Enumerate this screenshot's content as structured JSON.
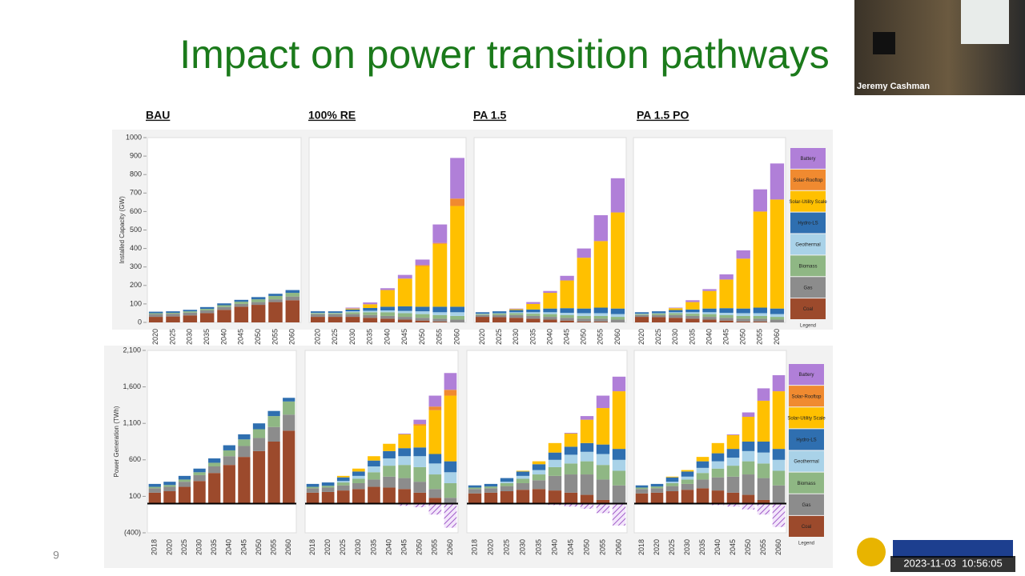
{
  "slide": {
    "title": "Impact on power transition pathways",
    "page_number": "9"
  },
  "video": {
    "speaker": "Jeremy Cashman",
    "timestamp": "2023-11-03  10:56:05"
  },
  "chart_data": [
    {
      "type": "bar",
      "stacked": true,
      "y_label": "Installed Capacity (GW)",
      "ylim": [
        0,
        1000
      ],
      "yticks": [
        0,
        100,
        200,
        300,
        400,
        500,
        600,
        700,
        800,
        900,
        1000
      ],
      "legend_title": "Legend",
      "series": [
        {
          "name": "Coal",
          "color": "#9c4a2c"
        },
        {
          "name": "Gas",
          "color": "#8c8c8c"
        },
        {
          "name": "Biomass",
          "color": "#8fb784"
        },
        {
          "name": "Geothermal",
          "color": "#a9d2e8"
        },
        {
          "name": "Hydro-LS",
          "color": "#2f6fb0"
        },
        {
          "name": "Solar-Utility Scale",
          "color": "#ffc000"
        },
        {
          "name": "Solar-Rooftop",
          "color": "#f08a30"
        },
        {
          "name": "Battery",
          "color": "#b07fd8"
        }
      ],
      "panels": [
        {
          "title": "BAU",
          "categories": [
            "2020",
            "2025",
            "2030",
            "2035",
            "2040",
            "2045",
            "2050",
            "2055",
            "2060"
          ],
          "values": {
            "Coal": [
              30,
              32,
              38,
              50,
              68,
              85,
              95,
              110,
              120
            ],
            "Gas": [
              15,
              15,
              15,
              15,
              15,
              15,
              15,
              15,
              20
            ],
            "Biomass": [
              5,
              5,
              7,
              8,
              10,
              12,
              15,
              18,
              20
            ],
            "Hydro-LS": [
              8,
              8,
              8,
              10,
              10,
              10,
              12,
              12,
              15
            ]
          }
        },
        {
          "title": "100% RE",
          "categories": [
            "2020",
            "2025",
            "2030",
            "2035",
            "2040",
            "2045",
            "2050",
            "2055",
            "2060"
          ],
          "values": {
            "Coal": [
              30,
              30,
              30,
              25,
              20,
              15,
              10,
              5,
              0
            ],
            "Gas": [
              15,
              15,
              15,
              15,
              15,
              15,
              15,
              15,
              15
            ],
            "Biomass": [
              5,
              5,
              10,
              15,
              20,
              20,
              20,
              20,
              20
            ],
            "Geothermal": [
              2,
              2,
              5,
              8,
              10,
              12,
              15,
              15,
              20
            ],
            "Hydro-LS": [
              8,
              8,
              10,
              15,
              20,
              25,
              25,
              30,
              30
            ],
            "Solar-Utility Scale": [
              0,
              0,
              5,
              20,
              90,
              150,
              220,
              340,
              545
            ],
            "Solar-Rooftop": [
              0,
              0,
              0,
              0,
              0,
              0,
              5,
              5,
              40
            ],
            "Battery": [
              0,
              0,
              5,
              10,
              10,
              20,
              30,
              100,
              220
            ]
          }
        },
        {
          "title": "PA 1.5",
          "categories": [
            "2020",
            "2025",
            "2030",
            "2035",
            "2040",
            "2045",
            "2050",
            "2055",
            "2060"
          ],
          "values": {
            "Coal": [
              30,
              28,
              25,
              20,
              15,
              10,
              5,
              5,
              0
            ],
            "Gas": [
              10,
              12,
              15,
              15,
              15,
              15,
              15,
              15,
              15
            ],
            "Biomass": [
              5,
              8,
              10,
              12,
              15,
              15,
              15,
              15,
              15
            ],
            "Geothermal": [
              2,
              2,
              5,
              8,
              10,
              12,
              15,
              15,
              15
            ],
            "Hydro-LS": [
              8,
              10,
              12,
              15,
              20,
              25,
              25,
              30,
              30
            ],
            "Solar-Utility Scale": [
              0,
              0,
              5,
              30,
              85,
              150,
              275,
              360,
              520
            ],
            "Battery": [
              0,
              0,
              3,
              10,
              10,
              25,
              50,
              140,
              185
            ]
          }
        },
        {
          "title": "PA 1.5 PO",
          "categories": [
            "2020",
            "2025",
            "2030",
            "2035",
            "2040",
            "2045",
            "2050",
            "2055",
            "2060"
          ],
          "values": {
            "Coal": [
              30,
              28,
              25,
              20,
              15,
              10,
              5,
              5,
              0
            ],
            "Gas": [
              10,
              12,
              15,
              15,
              15,
              15,
              15,
              15,
              15
            ],
            "Biomass": [
              5,
              8,
              10,
              12,
              15,
              15,
              15,
              15,
              15
            ],
            "Geothermal": [
              2,
              2,
              5,
              8,
              10,
              12,
              15,
              15,
              15
            ],
            "Hydro-LS": [
              8,
              10,
              12,
              15,
              20,
              25,
              25,
              30,
              30
            ],
            "Solar-Utility Scale": [
              0,
              0,
              10,
              40,
              95,
              155,
              270,
              520,
              590
            ],
            "Battery": [
              0,
              0,
              3,
              10,
              10,
              28,
              45,
              120,
              195
            ]
          }
        }
      ]
    },
    {
      "type": "bar",
      "stacked": true,
      "y_label": "Power Generation (TWh)",
      "ylim": [
        -400,
        2100
      ],
      "yticks": [
        {
          "value": -400,
          "label": "(400)"
        },
        100,
        600,
        {
          "value": 1100,
          "label": "1,100"
        },
        {
          "value": 1600,
          "label": "1,600"
        },
        {
          "value": 2100,
          "label": "2,100"
        }
      ],
      "legend_title": "Legend",
      "series": [
        {
          "name": "Coal",
          "color": "#9c4a2c"
        },
        {
          "name": "Gas",
          "color": "#8c8c8c"
        },
        {
          "name": "Biomass",
          "color": "#8fb784"
        },
        {
          "name": "Geothermal",
          "color": "#a9d2e8"
        },
        {
          "name": "Hydro-LS",
          "color": "#2f6fb0"
        },
        {
          "name": "Solar-Utility Scale",
          "color": "#ffc000"
        },
        {
          "name": "Solar-Rooftop",
          "color": "#f08a30"
        },
        {
          "name": "Battery",
          "color": "#b07fd8"
        }
      ],
      "panels": [
        {
          "title": "BAU",
          "categories": [
            "2018",
            "2020",
            "2025",
            "2030",
            "2035",
            "2040",
            "2045",
            "2050",
            "2055",
            "2060"
          ],
          "values": {
            "Coal": [
              150,
              170,
              230,
              310,
              420,
              530,
              640,
              720,
              850,
              1000
            ],
            "Gas": [
              60,
              60,
              70,
              80,
              90,
              120,
              150,
              180,
              200,
              220
            ],
            "Biomass": [
              20,
              25,
              30,
              40,
              50,
              80,
              90,
              120,
              150,
              180
            ],
            "Hydro-LS": [
              40,
              45,
              50,
              50,
              60,
              70,
              70,
              80,
              70,
              50
            ]
          }
        },
        {
          "title": "100% RE",
          "categories": [
            "2018",
            "2020",
            "2025",
            "2030",
            "2035",
            "2040",
            "2045",
            "2050",
            "2055",
            "2060"
          ],
          "values": {
            "Coal": [
              150,
              160,
              180,
              200,
              230,
              220,
              200,
              150,
              80,
              0
            ],
            "Gas": [
              60,
              60,
              70,
              80,
              100,
              150,
              150,
              150,
              120,
              80
            ],
            "Biomass": [
              20,
              25,
              40,
              60,
              100,
              150,
              180,
              200,
              200,
              200
            ],
            "Geothermal": [
              0,
              0,
              20,
              40,
              80,
              100,
              120,
              150,
              150,
              150
            ],
            "Hydro-LS": [
              40,
              45,
              50,
              60,
              80,
              100,
              110,
              120,
              130,
              150
            ],
            "Solar-Utility Scale": [
              0,
              0,
              20,
              40,
              60,
              100,
              190,
              300,
              600,
              900
            ],
            "Solar-Rooftop": [
              0,
              0,
              0,
              0,
              0,
              0,
              0,
              20,
              50,
              80
            ],
            "Battery": [
              0,
              0,
              0,
              0,
              0,
              0,
              10,
              60,
              150,
              230
            ]
          },
          "charging": [
            0,
            0,
            0,
            0,
            0,
            -10,
            -30,
            -50,
            -150,
            -330
          ]
        },
        {
          "title": "PA 1.5",
          "categories": [
            "2018",
            "2020",
            "2025",
            "2030",
            "2035",
            "2040",
            "2045",
            "2050",
            "2055",
            "2060"
          ],
          "values": {
            "Coal": [
              140,
              150,
              170,
              190,
              200,
              180,
              150,
              120,
              50,
              0
            ],
            "Gas": [
              60,
              60,
              70,
              90,
              120,
              200,
              250,
              280,
              280,
              250
            ],
            "Biomass": [
              20,
              25,
              40,
              60,
              80,
              120,
              150,
              180,
              200,
              200
            ],
            "Geothermal": [
              0,
              0,
              20,
              40,
              60,
              100,
              120,
              130,
              150,
              150
            ],
            "Hydro-LS": [
              30,
              35,
              50,
              60,
              80,
              100,
              110,
              120,
              130,
              150
            ],
            "Solar-Utility Scale": [
              0,
              0,
              0,
              10,
              40,
              130,
              180,
              320,
              500,
              790
            ],
            "Battery": [
              0,
              0,
              0,
              0,
              0,
              0,
              10,
              50,
              170,
              200
            ]
          },
          "charging": [
            0,
            0,
            0,
            0,
            0,
            -20,
            -40,
            -70,
            -130,
            -300
          ]
        },
        {
          "title": "PA 1.5 PO",
          "categories": [
            "2018",
            "2020",
            "2025",
            "2030",
            "2035",
            "2040",
            "2045",
            "2050",
            "2055",
            "2060"
          ],
          "values": {
            "Coal": [
              140,
              150,
              170,
              190,
              210,
              180,
              150,
              120,
              50,
              0
            ],
            "Gas": [
              60,
              60,
              70,
              80,
              120,
              180,
              220,
              280,
              300,
              250
            ],
            "Biomass": [
              20,
              25,
              40,
              60,
              90,
              120,
              150,
              180,
              200,
              200
            ],
            "Geothermal": [
              0,
              0,
              20,
              40,
              70,
              100,
              110,
              140,
              150,
              150
            ],
            "Hydro-LS": [
              30,
              35,
              60,
              70,
              90,
              110,
              120,
              130,
              150,
              150
            ],
            "Solar-Utility Scale": [
              0,
              0,
              10,
              20,
              60,
              140,
              190,
              340,
              560,
              790
            ],
            "Battery": [
              0,
              0,
              0,
              0,
              0,
              0,
              10,
              60,
              170,
              220
            ]
          },
          "charging": [
            0,
            0,
            0,
            0,
            0,
            -20,
            -40,
            -80,
            -150,
            -320
          ]
        }
      ]
    }
  ]
}
